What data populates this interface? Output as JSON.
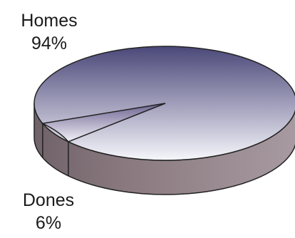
{
  "chart_data": {
    "type": "pie",
    "style": "3d",
    "slices": [
      {
        "label": "Homes",
        "value": 94,
        "value_label": "94%",
        "color": "#4a4878"
      },
      {
        "label": "Dones",
        "value": 6,
        "value_label": "6%",
        "color": "#6e6490"
      }
    ],
    "side_color": "#7d6d74",
    "edge_color": "#222222"
  }
}
